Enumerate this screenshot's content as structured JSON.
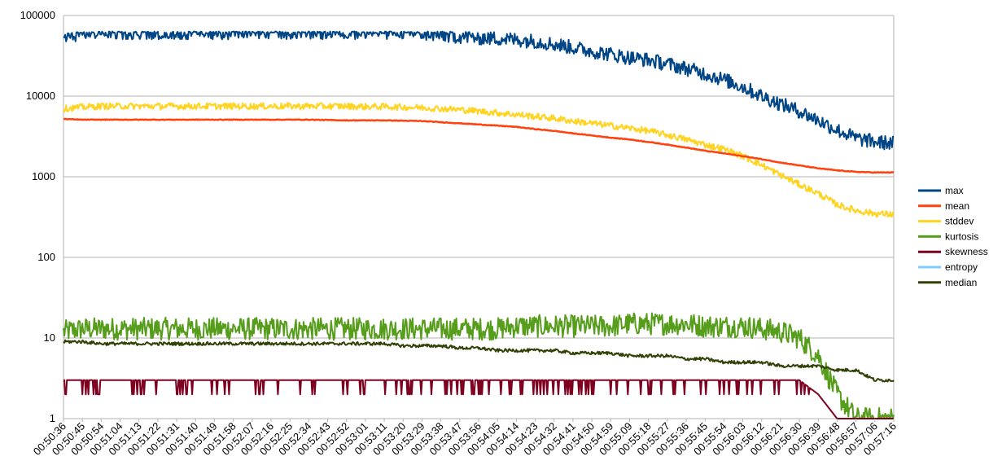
{
  "chart_data": {
    "type": "line",
    "title": "",
    "xlabel": "",
    "ylabel": "",
    "y_scale": "log",
    "ylim": [
      1,
      100000
    ],
    "y_ticks": [
      "1",
      "10",
      "100",
      "1000",
      "10000",
      "100000"
    ],
    "grid": true,
    "legend_position": "right",
    "x_ticks": [
      "00:50:36",
      "00:50:45",
      "00:50:54",
      "00:51:04",
      "00:51:13",
      "00:51:22",
      "00:51:31",
      "00:51:40",
      "00:51:49",
      "00:51:58",
      "00:52:07",
      "00:52:16",
      "00:52:25",
      "00:52:34",
      "00:52:43",
      "00:52:52",
      "00:53:01",
      "00:53:11",
      "00:53:20",
      "00:53:29",
      "00:53:38",
      "00:53:47",
      "00:53:56",
      "00:54:05",
      "00:54:14",
      "00:54:23",
      "00:54:32",
      "00:54:41",
      "00:54:50",
      "00:54:59",
      "00:55:09",
      "00:55:18",
      "00:55:27",
      "00:55:36",
      "00:55:45",
      "00:55:54",
      "00:56:03",
      "00:56:12",
      "00:56:21",
      "00:56:30",
      "00:56:39",
      "00:56:48",
      "00:56:57",
      "00:57:06",
      "00:57:16"
    ],
    "series": [
      {
        "name": "max",
        "color": "#004586",
        "values": [
          52000,
          62000,
          62000,
          62000,
          62000,
          62000,
          62000,
          62000,
          62000,
          62000,
          62000,
          62000,
          62000,
          62000,
          62000,
          62000,
          62000,
          62000,
          62000,
          60000,
          57000,
          55000,
          53000,
          52000,
          50000,
          48000,
          44000,
          40000,
          36000,
          33000,
          30000,
          28000,
          25000,
          22000,
          19000,
          16000,
          13000,
          10000,
          8000,
          6500,
          5000,
          3800,
          3000,
          2700,
          2600
        ]
      },
      {
        "name": "mean",
        "color": "#ff420e",
        "values": [
          5200,
          5100,
          5100,
          5100,
          5100,
          5100,
          5100,
          5100,
          5100,
          5100,
          5100,
          5100,
          5100,
          5100,
          5050,
          5000,
          5000,
          5000,
          4950,
          4900,
          4750,
          4600,
          4450,
          4300,
          4150,
          3900,
          3700,
          3450,
          3250,
          3050,
          2900,
          2700,
          2500,
          2300,
          2100,
          1950,
          1800,
          1650,
          1500,
          1380,
          1270,
          1200,
          1150,
          1130,
          1130
        ]
      },
      {
        "name": "stddev",
        "color": "#ffd320",
        "values": [
          7000,
          7300,
          7500,
          7500,
          7500,
          7500,
          7500,
          7500,
          7500,
          7500,
          7500,
          7500,
          7500,
          7500,
          7500,
          7500,
          7400,
          7400,
          7300,
          7200,
          7000,
          6800,
          6500,
          6200,
          5900,
          5600,
          5300,
          4900,
          4600,
          4300,
          4000,
          3700,
          3300,
          2900,
          2500,
          2200,
          1800,
          1400,
          1050,
          800,
          620,
          450,
          380,
          350,
          340
        ]
      },
      {
        "name": "kurtosis",
        "color": "#579d1c",
        "values": [
          12,
          13,
          13,
          13,
          13,
          13,
          13,
          13,
          13,
          13,
          13,
          13,
          13,
          13,
          13,
          13,
          13,
          13,
          13,
          13,
          13,
          13,
          13,
          13,
          14,
          14,
          14,
          14,
          14,
          14,
          15,
          15,
          15,
          15,
          14,
          14,
          14,
          13,
          12,
          10,
          6,
          2,
          1,
          1,
          1
        ]
      },
      {
        "name": "skewness",
        "color": "#7e0021",
        "values": [
          3,
          3,
          3,
          3,
          3,
          3,
          3,
          3,
          3,
          3,
          3,
          3,
          3,
          3,
          3,
          3,
          3,
          3,
          3,
          3,
          3,
          3,
          3,
          3,
          3,
          3,
          3,
          3,
          3,
          3,
          3,
          3,
          3,
          3,
          3,
          3,
          3,
          3,
          3,
          3,
          2,
          1,
          1,
          1,
          1
        ]
      },
      {
        "name": "entropy",
        "color": "#83caff",
        "values": []
      },
      {
        "name": "median",
        "color": "#314004",
        "values": [
          9,
          9,
          8.5,
          8.5,
          8.5,
          8.5,
          8.5,
          8.5,
          8.5,
          8.5,
          8.5,
          8.5,
          8.5,
          8.5,
          8.5,
          8.5,
          8.5,
          8.5,
          8,
          8,
          8,
          7.5,
          7.5,
          7,
          7,
          7,
          7,
          6.5,
          6.5,
          6.5,
          6,
          6,
          6,
          5.5,
          5.5,
          5,
          5,
          5,
          4.5,
          4.5,
          4.5,
          4,
          4,
          3,
          3
        ]
      }
    ]
  }
}
